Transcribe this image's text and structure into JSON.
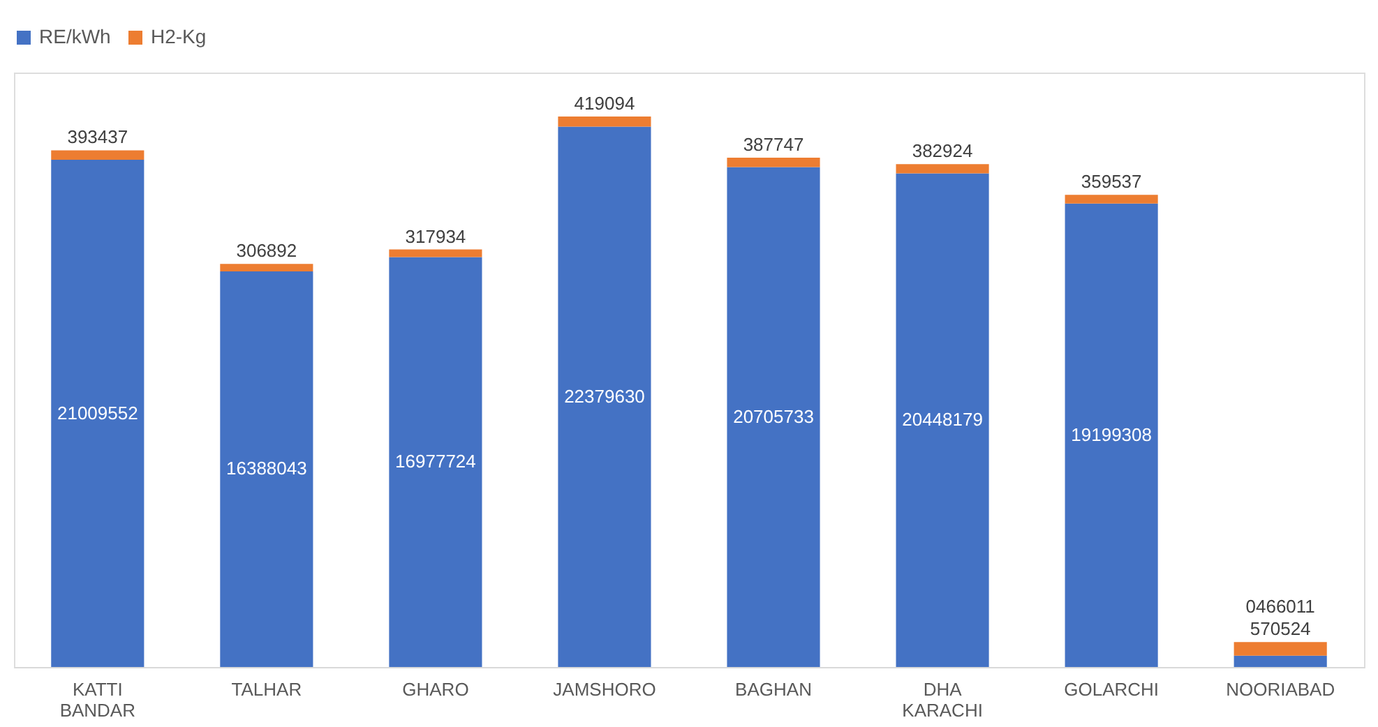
{
  "chart_data": {
    "type": "bar",
    "stacked": true,
    "legend": "top",
    "categories": [
      "KATTI BANDAR",
      "TALHAR",
      "GHARO",
      "JAMSHORO",
      "BAGHAN",
      "DHA KARACHI",
      "GOLARCHI",
      "NOORIABAD"
    ],
    "series": [
      {
        "name": "RE/kWh",
        "color": "#4472c4",
        "values": [
          21009552,
          16388043,
          16977724,
          22379630,
          20705733,
          20448179,
          19199308,
          466011
        ],
        "value_labels": [
          "21009552",
          "16388043",
          "16977724",
          "22379630",
          "20705733",
          "20448179",
          "19199308",
          "0466011"
        ]
      },
      {
        "name": "H2-Kg",
        "color": "#ed7d31",
        "values": [
          393437,
          306892,
          317934,
          419094,
          387747,
          382924,
          359537,
          570524
        ],
        "value_labels": [
          "393437",
          "306892",
          "317934",
          "419094",
          "387747",
          "382924",
          "359537",
          "570524"
        ]
      }
    ]
  }
}
